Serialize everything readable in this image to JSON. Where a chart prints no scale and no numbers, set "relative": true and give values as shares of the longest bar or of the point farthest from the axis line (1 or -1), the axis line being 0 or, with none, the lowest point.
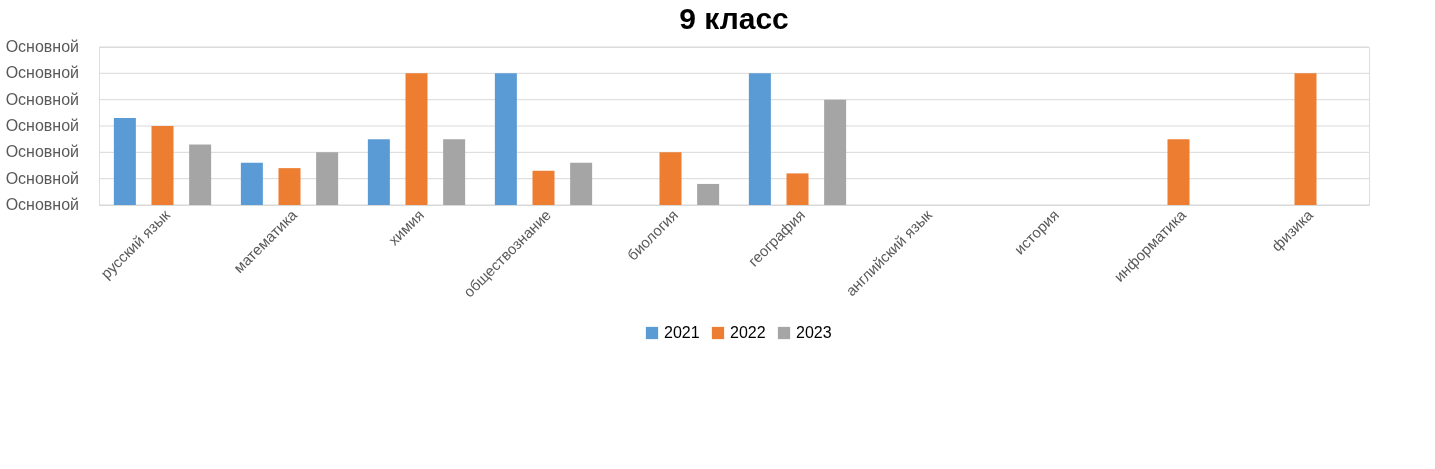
{
  "chart_data": {
    "type": "bar",
    "title": "9 класс",
    "relative": true,
    "categories": [
      "русский язык",
      "математика",
      "химия",
      "обществознание",
      "биология",
      "география",
      "английский язык",
      "история",
      "информатика",
      "физика"
    ],
    "series": [
      {
        "name": "2021",
        "color": "#5b9bd5",
        "values": [
          0.66,
          0.32,
          0.5,
          1,
          null,
          1,
          null,
          null,
          null,
          null
        ]
      },
      {
        "name": "2022",
        "color": "#ed7d31",
        "values": [
          0.6,
          0.28,
          1,
          0.26,
          0.4,
          0.24,
          null,
          null,
          0.5,
          1
        ]
      },
      {
        "name": "2023",
        "color": "#a5a5a5",
        "values": [
          0.46,
          0.4,
          0.5,
          0.32,
          0.16,
          0.8,
          null,
          null,
          null,
          null
        ]
      }
    ],
    "annotations": [
      "Основной",
      "Основной",
      "Основной",
      "Основной",
      "Основной",
      "Основной",
      "Основной"
    ],
    "grid": "y",
    "legend": "bottom"
  }
}
